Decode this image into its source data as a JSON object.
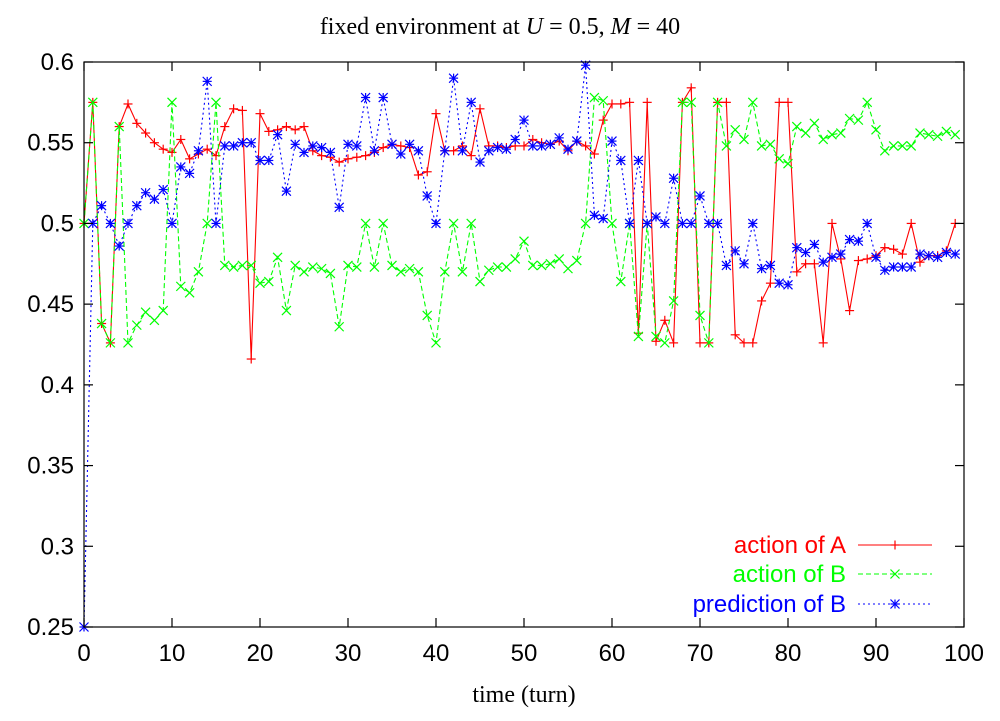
{
  "chart_data": {
    "type": "line",
    "title": "fixed environment at U = 0.5, M = 40",
    "title_parts": {
      "prefix": "fixed environment at ",
      "var1": "U",
      "eq1": " = 0.5, ",
      "var2": "M",
      "eq2": " = 40"
    },
    "xlabel": "time (turn)",
    "ylabel": "",
    "xlim": [
      0,
      100
    ],
    "ylim": [
      0.25,
      0.6
    ],
    "xticks": [
      0,
      10,
      20,
      30,
      40,
      50,
      60,
      70,
      80,
      90,
      100
    ],
    "yticks": [
      0.25,
      0.3,
      0.35,
      0.4,
      0.45,
      0.5,
      0.55,
      0.6
    ],
    "xtick_labels": [
      "0",
      "10",
      "20",
      "30",
      "40",
      "50",
      "60",
      "70",
      "80",
      "90",
      "100"
    ],
    "ytick_labels": [
      "0.25",
      "0.3",
      "0.35",
      "0.4",
      "0.45",
      "0.5",
      "0.55",
      "0.6"
    ],
    "grid": false,
    "legend": "bottom-right",
    "series": [
      {
        "name": "action of A",
        "color": "#ff0000",
        "marker": "plus",
        "dash": "solid",
        "x": [
          0,
          1,
          2,
          3,
          4,
          5,
          6,
          7,
          8,
          9,
          10,
          11,
          12,
          13,
          14,
          15,
          16,
          17,
          18,
          19,
          20,
          21,
          22,
          23,
          24,
          25,
          26,
          27,
          28,
          29,
          30,
          31,
          32,
          33,
          34,
          35,
          36,
          37,
          38,
          39,
          40,
          41,
          42,
          43,
          44,
          45,
          46,
          47,
          48,
          49,
          50,
          51,
          52,
          53,
          54,
          55,
          56,
          57,
          58,
          59,
          60,
          61,
          62,
          63,
          64,
          65,
          66,
          67,
          68,
          69,
          70,
          71,
          72,
          73,
          74,
          75,
          76,
          77,
          78,
          79,
          80,
          81,
          82,
          83,
          84,
          85,
          86,
          87,
          88,
          89,
          90,
          91,
          92,
          93,
          94,
          95,
          96,
          97,
          98,
          99
        ],
        "y": [
          0.5,
          0.575,
          0.438,
          0.426,
          0.56,
          0.574,
          0.562,
          0.556,
          0.55,
          0.546,
          0.544,
          0.552,
          0.54,
          0.543,
          0.546,
          0.542,
          0.56,
          0.571,
          0.57,
          0.416,
          0.568,
          0.557,
          0.558,
          0.56,
          0.558,
          0.56,
          0.545,
          0.542,
          0.541,
          0.538,
          0.54,
          0.541,
          0.542,
          0.544,
          0.547,
          0.549,
          0.548,
          0.547,
          0.53,
          0.532,
          0.568,
          0.545,
          0.545,
          0.548,
          0.542,
          0.571,
          0.548,
          0.548,
          0.547,
          0.548,
          0.548,
          0.552,
          0.55,
          0.549,
          0.551,
          0.545,
          0.551,
          0.548,
          0.543,
          0.564,
          0.574,
          0.574,
          0.575,
          0.432,
          0.575,
          0.427,
          0.44,
          0.426,
          0.575,
          0.584,
          0.426,
          0.426,
          0.575,
          0.575,
          0.431,
          0.426,
          0.426,
          0.452,
          0.463,
          0.575,
          0.575,
          0.47,
          0.475,
          0.475,
          0.426,
          0.5,
          0.478,
          0.446,
          0.477,
          0.478,
          0.48,
          0.485,
          0.484,
          0.481,
          0.5,
          0.476,
          0.48,
          0.48,
          0.483,
          0.5
        ]
      },
      {
        "name": "action of B",
        "color": "#00ff00",
        "marker": "cross",
        "dash": "dashed",
        "x": [
          0,
          1,
          2,
          3,
          4,
          5,
          6,
          7,
          8,
          9,
          10,
          11,
          12,
          13,
          14,
          15,
          16,
          17,
          18,
          19,
          20,
          21,
          22,
          23,
          24,
          25,
          26,
          27,
          28,
          29,
          30,
          31,
          32,
          33,
          34,
          35,
          36,
          37,
          38,
          39,
          40,
          41,
          42,
          43,
          44,
          45,
          46,
          47,
          48,
          49,
          50,
          51,
          52,
          53,
          54,
          55,
          56,
          57,
          58,
          59,
          60,
          61,
          62,
          63,
          64,
          65,
          66,
          67,
          68,
          69,
          70,
          71,
          72,
          73,
          74,
          75,
          76,
          77,
          78,
          79,
          80,
          81,
          82,
          83,
          84,
          85,
          86,
          87,
          88,
          89,
          90,
          91,
          92,
          93,
          94,
          95,
          96,
          97,
          98,
          99
        ],
        "y": [
          0.5,
          0.575,
          0.438,
          0.426,
          0.56,
          0.426,
          0.437,
          0.445,
          0.44,
          0.446,
          0.575,
          0.461,
          0.457,
          0.47,
          0.5,
          0.575,
          0.474,
          0.473,
          0.474,
          0.474,
          0.463,
          0.464,
          0.479,
          0.446,
          0.474,
          0.47,
          0.473,
          0.472,
          0.469,
          0.436,
          0.474,
          0.473,
          0.5,
          0.473,
          0.5,
          0.474,
          0.47,
          0.472,
          0.47,
          0.443,
          0.426,
          0.47,
          0.5,
          0.47,
          0.5,
          0.464,
          0.471,
          0.473,
          0.473,
          0.478,
          0.489,
          0.474,
          0.474,
          0.475,
          0.478,
          0.472,
          0.477,
          0.5,
          0.578,
          0.576,
          0.5,
          0.464,
          0.5,
          0.43,
          0.5,
          0.43,
          0.426,
          0.452,
          0.575,
          0.575,
          0.443,
          0.426,
          0.575,
          0.548,
          0.558,
          0.552,
          0.575,
          0.548,
          0.549,
          0.54,
          0.537,
          0.56,
          0.556,
          0.562,
          0.552,
          0.555,
          0.556,
          0.565,
          0.564,
          0.575,
          0.558,
          0.545,
          0.548,
          0.548,
          0.548,
          0.556,
          0.555,
          0.554,
          0.557,
          0.555
        ]
      },
      {
        "name": "prediction of B",
        "color": "#0000ff",
        "marker": "star",
        "dash": "dotted",
        "x": [
          0,
          1,
          2,
          3,
          4,
          5,
          6,
          7,
          8,
          9,
          10,
          11,
          12,
          13,
          14,
          15,
          16,
          17,
          18,
          19,
          20,
          21,
          22,
          23,
          24,
          25,
          26,
          27,
          28,
          29,
          30,
          31,
          32,
          33,
          34,
          35,
          36,
          37,
          38,
          39,
          40,
          41,
          42,
          43,
          44,
          45,
          46,
          47,
          48,
          49,
          50,
          51,
          52,
          53,
          54,
          55,
          56,
          57,
          58,
          59,
          60,
          61,
          62,
          63,
          64,
          65,
          66,
          67,
          68,
          69,
          70,
          71,
          72,
          73,
          74,
          75,
          76,
          77,
          78,
          79,
          80,
          81,
          82,
          83,
          84,
          85,
          86,
          87,
          88,
          89,
          90,
          91,
          92,
          93,
          94,
          95,
          96,
          97,
          98,
          99
        ],
        "y": [
          0.25,
          0.5,
          0.511,
          0.5,
          0.486,
          0.5,
          0.511,
          0.519,
          0.515,
          0.521,
          0.5,
          0.535,
          0.531,
          0.545,
          0.588,
          0.5,
          0.548,
          0.548,
          0.55,
          0.55,
          0.539,
          0.539,
          0.555,
          0.52,
          0.549,
          0.544,
          0.548,
          0.547,
          0.544,
          0.51,
          0.549,
          0.548,
          0.578,
          0.545,
          0.578,
          0.549,
          0.543,
          0.549,
          0.545,
          0.517,
          0.5,
          0.545,
          0.59,
          0.545,
          0.575,
          0.538,
          0.545,
          0.547,
          0.546,
          0.552,
          0.564,
          0.548,
          0.548,
          0.549,
          0.553,
          0.546,
          0.551,
          0.598,
          0.505,
          0.503,
          0.551,
          0.539,
          0.5,
          0.539,
          0.5,
          0.504,
          0.5,
          0.528,
          0.5,
          0.5,
          0.517,
          0.5,
          0.5,
          0.474,
          0.483,
          0.475,
          0.5,
          0.472,
          0.474,
          0.463,
          0.462,
          0.485,
          0.482,
          0.487,
          0.476,
          0.479,
          0.481,
          0.49,
          0.489,
          0.5,
          0.479,
          0.471,
          0.473,
          0.473,
          0.473,
          0.481,
          0.48,
          0.479,
          0.482,
          0.481
        ]
      }
    ]
  }
}
